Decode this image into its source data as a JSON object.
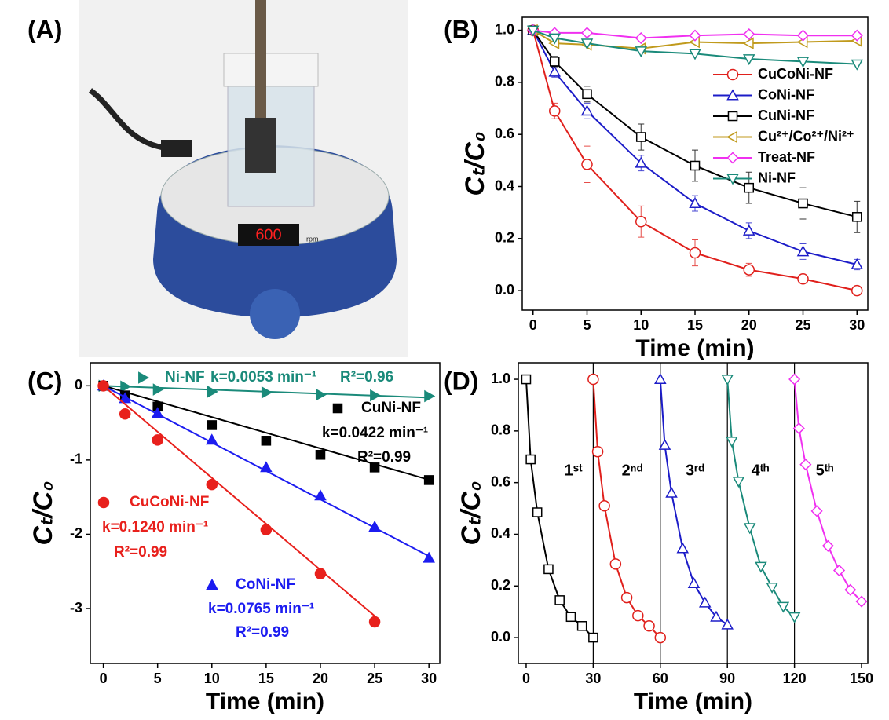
{
  "panel_a": {
    "label": "(A)",
    "display": "600",
    "unit": "rpm"
  },
  "chart_data": [
    {
      "type": "line",
      "panel": "(B)",
      "xlabel": "Time (min)",
      "ylabel": "Cₜ/C₀",
      "xlim": [
        -1,
        31
      ],
      "ylim": [
        -0.075,
        1.05
      ],
      "xticks": [
        0,
        5,
        10,
        15,
        20,
        25,
        30
      ],
      "yticks": [
        {
          "value": 0,
          "label": "0.0"
        },
        {
          "value": 0.2,
          "label": "0.2"
        },
        {
          "value": 0.4,
          "label": "0.4"
        },
        {
          "value": 0.6,
          "label": "0.6"
        },
        {
          "value": 0.8,
          "label": "0.8"
        },
        {
          "value": 1,
          "label": "1.0"
        }
      ],
      "legend": "upper right",
      "markers_filled": false,
      "series": [
        {
          "name": "CuCoNi-NF",
          "color": "#e0201c",
          "marker": "circle",
          "x": [
            0,
            2,
            5,
            10,
            15,
            20,
            25,
            30
          ],
          "values": [
            1.0,
            0.69,
            0.485,
            0.265,
            0.145,
            0.08,
            0.045,
            0.0
          ],
          "errors": [
            0,
            0.03,
            0.07,
            0.06,
            0.05,
            0.025,
            0.01,
            0.005
          ]
        },
        {
          "name": "CoNi-NF",
          "color": "#1c1cc8",
          "marker": "triangle-up",
          "x": [
            0,
            2,
            5,
            10,
            15,
            20,
            25,
            30
          ],
          "values": [
            1.0,
            0.84,
            0.69,
            0.49,
            0.335,
            0.23,
            0.15,
            0.1
          ],
          "errors": [
            0,
            0.02,
            0.03,
            0.03,
            0.03,
            0.03,
            0.03,
            0.02
          ]
        },
        {
          "name": "CuNi-NF",
          "color": "#000000",
          "marker": "square",
          "x": [
            0,
            2,
            5,
            10,
            15,
            20,
            25,
            30
          ],
          "values": [
            1.0,
            0.88,
            0.755,
            0.59,
            0.48,
            0.395,
            0.335,
            0.283
          ],
          "errors": [
            0,
            0.02,
            0.03,
            0.05,
            0.06,
            0.06,
            0.06,
            0.06
          ]
        },
        {
          "name": "Cu²⁺/Co²⁺/Ni²⁺",
          "color": "#c09a1c",
          "marker": "triangle-left",
          "x": [
            0,
            2,
            5,
            10,
            15,
            20,
            25,
            30
          ],
          "values": [
            1.0,
            0.95,
            0.945,
            0.93,
            0.955,
            0.95,
            0.955,
            0.96
          ]
        },
        {
          "name": "Treat-NF",
          "color": "#f030f0",
          "marker": "diamond",
          "x": [
            0,
            2,
            5,
            10,
            15,
            20,
            25,
            30
          ],
          "values": [
            1.0,
            0.99,
            0.99,
            0.97,
            0.98,
            0.985,
            0.98,
            0.98
          ]
        },
        {
          "name": "Ni-NF",
          "color": "#1a8a7a",
          "marker": "triangle-down",
          "x": [
            0,
            2,
            5,
            10,
            15,
            20,
            25,
            30
          ],
          "values": [
            1.0,
            0.97,
            0.95,
            0.92,
            0.91,
            0.89,
            0.88,
            0.87
          ]
        }
      ]
    },
    {
      "type": "scatter",
      "panel": "(C)",
      "xlabel": "Time (min)",
      "ylabel": "Cₜ/C₀",
      "xlim": [
        -1.2,
        31
      ],
      "ylim": [
        -3.74,
        0.31
      ],
      "xticks": [
        0,
        5,
        10,
        15,
        20,
        25,
        30
      ],
      "yticks": [
        -3,
        -2,
        -1,
        0
      ],
      "markers_filled": true,
      "series": [
        {
          "name": "Ni-NF",
          "color": "#1a8a7a",
          "marker": "triangle-right",
          "x": [
            0,
            2,
            5,
            10,
            15,
            20,
            25,
            30
          ],
          "values": [
            0,
            -0.01,
            -0.05,
            -0.08,
            -0.09,
            -0.12,
            -0.13,
            -0.14
          ],
          "k": 0.0053,
          "k_label": "k=0.0053 min⁻¹",
          "r2_label": "R²=0.96"
        },
        {
          "name": "CuNi-NF",
          "color": "#000000",
          "marker": "square",
          "x": [
            0,
            2,
            5,
            10,
            15,
            20,
            25,
            30
          ],
          "values": [
            0,
            -0.13,
            -0.28,
            -0.53,
            -0.74,
            -0.93,
            -1.1,
            -1.27
          ],
          "k": 0.0422,
          "k_label": "k=0.0422 min⁻¹",
          "r2_label": "R²=0.99"
        },
        {
          "name": "CoNi-NF",
          "color": "#1c1cf0",
          "marker": "triangle-up",
          "x": [
            0,
            2,
            5,
            10,
            15,
            20,
            25,
            30
          ],
          "values": [
            0,
            -0.17,
            -0.37,
            -0.73,
            -1.1,
            -1.48,
            -1.9,
            -2.32
          ],
          "k": 0.0765,
          "k_label": "k=0.0765 min⁻¹",
          "r2_label": "R²=0.99"
        },
        {
          "name": "CuCoNi-NF",
          "color": "#e8201c",
          "marker": "circle",
          "x": [
            0,
            2,
            5,
            10,
            15,
            20,
            25
          ],
          "values": [
            0,
            -0.38,
            -0.73,
            -1.33,
            -1.94,
            -2.53,
            -3.18
          ],
          "k": 0.124,
          "k_label": "k=0.1240 min⁻¹",
          "r2_label": "R²=0.99"
        }
      ]
    },
    {
      "type": "line",
      "panel": "(D)",
      "xlabel": "Time (min)",
      "ylabel": "Cₜ/C₀",
      "xlim": [
        -3.5,
        152.8
      ],
      "ylim": [
        -0.1,
        1.064
      ],
      "xticks": [
        0,
        30,
        60,
        90,
        120,
        150
      ],
      "yticks": [
        {
          "value": 0,
          "label": "0.0"
        },
        {
          "value": 0.2,
          "label": "0.2"
        },
        {
          "value": 0.4,
          "label": "0.4"
        },
        {
          "value": 0.6,
          "label": "0.6"
        },
        {
          "value": 0.8,
          "label": "0.8"
        },
        {
          "value": 1,
          "label": "1.0"
        }
      ],
      "dividers": [
        30,
        60,
        90,
        120
      ],
      "markers_filled": false,
      "series": [
        {
          "name": "1ˢᵗ",
          "color": "#000000",
          "marker": "square",
          "x": [
            0,
            2,
            5,
            10,
            15,
            20,
            25,
            30
          ],
          "values": [
            1.0,
            0.69,
            0.485,
            0.265,
            0.145,
            0.08,
            0.045,
            0.0
          ]
        },
        {
          "name": "2ⁿᵈ",
          "color": "#e0201c",
          "marker": "circle",
          "x": [
            30,
            32,
            35,
            40,
            45,
            50,
            55,
            60
          ],
          "values": [
            1.0,
            0.72,
            0.51,
            0.285,
            0.155,
            0.085,
            0.045,
            0.0
          ]
        },
        {
          "name": "3ʳᵈ",
          "color": "#1c1cc8",
          "marker": "triangle-up",
          "x": [
            60,
            62,
            65,
            70,
            75,
            80,
            85,
            90
          ],
          "values": [
            1.0,
            0.745,
            0.56,
            0.345,
            0.21,
            0.135,
            0.08,
            0.05
          ]
        },
        {
          "name": "4ᵗʰ",
          "color": "#1a8a7a",
          "marker": "triangle-down",
          "x": [
            90,
            92,
            95,
            100,
            105,
            110,
            115,
            120
          ],
          "values": [
            1.0,
            0.76,
            0.605,
            0.425,
            0.275,
            0.195,
            0.12,
            0.08
          ]
        },
        {
          "name": "5ᵗʰ",
          "color": "#f030f0",
          "marker": "diamond",
          "x": [
            120,
            122,
            125,
            130,
            135,
            140,
            145,
            150
          ],
          "values": [
            1.0,
            0.81,
            0.67,
            0.49,
            0.355,
            0.26,
            0.185,
            0.14
          ]
        }
      ]
    }
  ]
}
